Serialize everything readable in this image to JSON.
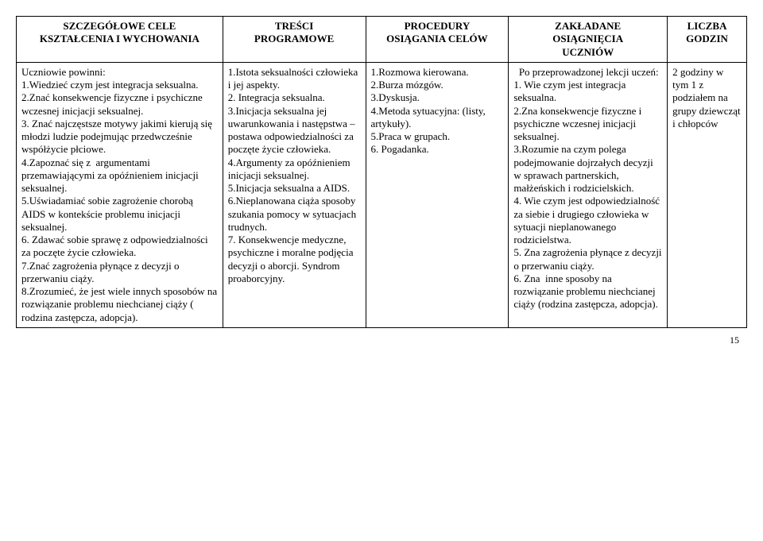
{
  "table": {
    "headers": [
      "SZCZEGÓŁOWE CELE\nKSZTAŁCENIA I WYCHOWANIA",
      "TREŚCI\nPROGRAMOWE",
      "PROCEDURY\nOSIĄGANIA CELÓW",
      "ZAKŁADANE\nOSIĄGNIĘCIA\nUCZNIÓW",
      "LICZBA\nGODZIN"
    ],
    "row": [
      "Uczniowie powinni:\n1.Wiedzieć czym jest integracja seksualna.\n2.Znać konsekwencje fizyczne i psychiczne wczesnej inicjacji seksualnej.\n3. Znać najczęstsze motywy jakimi kierują się młodzi ludzie podejmując przedwcześnie współżycie płciowe.\n4.Zapoznać się z  argumentami przemawiającymi za opóźnieniem inicjacji seksualnej.\n5.Uświadamiać sobie zagrożenie chorobą AIDS w kontekście problemu inicjacji seksualnej.\n6. Zdawać sobie sprawę z odpowiedzialności za poczęte życie człowieka.\n7.Znać zagrożenia płynące z decyzji o przerwaniu ciąży.\n8.Zrozumieć, że jest wiele innych sposobów na rozwiązanie problemu niechcianej ciąży ( rodzina zastępcza, adopcja).",
      "1.Istota seksualności człowieka i jej aspekty.\n2. Integracja seksualna.\n3.Inicjacja seksualna jej uwarunkowania i następstwa – postawa odpowiedzialności za poczęte życie człowieka.\n4.Argumenty za opóźnieniem inicjacji seksualnej.\n5.Inicjacja seksualna a AIDS.\n6.Nieplanowana ciąża sposoby szukania pomocy w sytuacjach trudnych.\n7. Konsekwencje medyczne, psychiczne i moralne podjęcia decyzji o aborcji. Syndrom proaborcyjny.",
      "1.Rozmowa kierowana.\n2.Burza mózgów.\n3.Dyskusja.\n4.Metoda sytuacyjna: (listy, artykuły).\n5.Praca w grupach.\n6. Pogadanka.",
      "  Po przeprowadzonej lekcji uczeń:\n1. Wie czym jest integracja seksualna.\n2.Zna konsekwencje fizyczne i psychiczne wczesnej inicjacji seksualnej.\n3.Rozumie na czym polega podejmowanie dojrzałych decyzji w sprawach partnerskich, małżeńskich i rodzicielskich.\n4. Wie czym jest odpowiedzialność za siebie i drugiego człowieka w sytuacji nieplanowanego rodzicielstwa.\n5. Zna zagrożenia płynące z decyzji o przerwaniu ciąży.\n6. Zna  inne sposoby na rozwiązanie problemu niechcianej ciąży (rodzina zastępcza, adopcja).",
      "2 godziny w tym 1 z podziałem na grupy dziewcząt i chłopców"
    ]
  },
  "pageNumber": "15"
}
